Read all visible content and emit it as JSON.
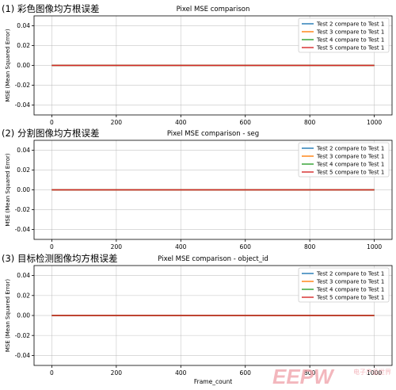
{
  "colors": {
    "series": [
      "#1f77b4",
      "#ff7f0e",
      "#2ca02c",
      "#d62728"
    ],
    "grid": "#b0b0b0",
    "axis": "#000000",
    "watermark": "#f0a0a8"
  },
  "panels": [
    {
      "heading": "(1) 彩色图像均方根误差"
    },
    {
      "heading": "(2) 分割图像均方根误差"
    },
    {
      "heading": "(3) 目标检测图像均方根误差"
    }
  ],
  "watermark": {
    "logo_text": "EEPW",
    "tagline": "电子产品世界"
  },
  "chart_data": [
    {
      "type": "line",
      "title": "Pixel MSE comparison",
      "xlabel": "",
      "ylabel": "MSE (Mean Squared Error)",
      "xlim": [
        -55,
        1055
      ],
      "ylim": [
        -0.05,
        0.05
      ],
      "xticks": [
        0,
        200,
        400,
        600,
        800,
        1000
      ],
      "yticks": [
        -0.04,
        -0.02,
        0.0,
        0.02,
        0.04
      ],
      "ytick_labels": [
        "-0.04",
        "-0.02",
        "0.00",
        "0.02",
        "0.04"
      ],
      "grid": true,
      "legend_position": "top-right",
      "x": [
        0,
        1000
      ],
      "series": [
        {
          "name": "Test 2 compare to Test 1",
          "values": [
            0,
            0
          ]
        },
        {
          "name": "Test 3 compare to Test 1",
          "values": [
            0,
            0
          ]
        },
        {
          "name": "Test 4 compare to Test 1",
          "values": [
            0,
            0
          ]
        },
        {
          "name": "Test 5 compare to Test 1",
          "values": [
            0,
            0
          ]
        }
      ]
    },
    {
      "type": "line",
      "title": "Pixel MSE comparison - seg",
      "xlabel": "",
      "ylabel": "MSE (Mean Squared Error)",
      "xlim": [
        -55,
        1055
      ],
      "ylim": [
        -0.05,
        0.05
      ],
      "xticks": [
        0,
        200,
        400,
        600,
        800,
        1000
      ],
      "yticks": [
        -0.04,
        -0.02,
        0.0,
        0.02,
        0.04
      ],
      "ytick_labels": [
        "-0.04",
        "-0.02",
        "0.00",
        "0.02",
        "0.04"
      ],
      "grid": true,
      "legend_position": "top-right",
      "x": [
        0,
        1000
      ],
      "series": [
        {
          "name": "Test 2 compare to Test 1",
          "values": [
            0,
            0
          ]
        },
        {
          "name": "Test 3 compare to Test 1",
          "values": [
            0,
            0
          ]
        },
        {
          "name": "Test 4 compare to Test 1",
          "values": [
            0,
            0
          ]
        },
        {
          "name": "Test 5 compare to Test 1",
          "values": [
            0,
            0
          ]
        }
      ]
    },
    {
      "type": "line",
      "title": "Pixel MSE comparison - object_id",
      "xlabel": "Frame_count",
      "ylabel": "MSE (Mean Squared Error)",
      "xlim": [
        -55,
        1055
      ],
      "ylim": [
        -0.05,
        0.05
      ],
      "xticks": [
        0,
        200,
        400,
        600,
        800,
        1000
      ],
      "yticks": [
        -0.04,
        -0.02,
        0.0,
        0.02,
        0.04
      ],
      "ytick_labels": [
        "-0.04",
        "-0.02",
        "0.00",
        "0.02",
        "0.04"
      ],
      "grid": true,
      "legend_position": "top-right",
      "x": [
        0,
        1000
      ],
      "series": [
        {
          "name": "Test 2 compare to Test 1",
          "values": [
            0,
            0
          ]
        },
        {
          "name": "Test 3 compare to Test 1",
          "values": [
            0,
            0
          ]
        },
        {
          "name": "Test 4 compare to Test 1",
          "values": [
            0,
            0
          ]
        },
        {
          "name": "Test 5 compare to Test 1",
          "values": [
            0,
            0
          ]
        }
      ]
    }
  ]
}
